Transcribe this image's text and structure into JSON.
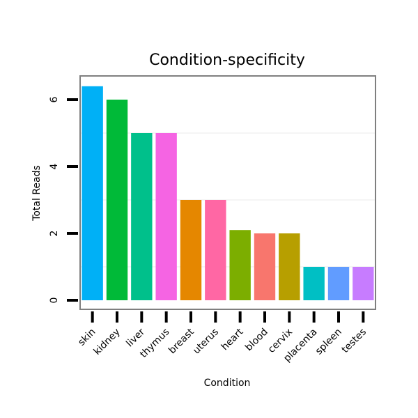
{
  "chart_data": {
    "type": "bar",
    "title": "Condition-specificity",
    "xlabel": "Condition",
    "ylabel": "Total Reads",
    "categories": [
      "skin",
      "kidney",
      "liver",
      "thymus",
      "breast",
      "uterus",
      "heart",
      "blood",
      "cervix",
      "placenta",
      "spleen",
      "testes"
    ],
    "values": [
      6.4,
      6.0,
      5.0,
      5.0,
      3.0,
      3.0,
      2.1,
      2.0,
      2.0,
      1.0,
      1.0,
      1.0
    ],
    "colors": [
      "#00B0F6",
      "#00BA38",
      "#00C08B",
      "#F564E3",
      "#E58700",
      "#FF67A4",
      "#7CAE00",
      "#F8766D",
      "#B79F00",
      "#00BFC4",
      "#619CFF",
      "#C77CFF"
    ],
    "yticks": [
      0,
      2,
      4,
      6
    ],
    "ylim": [
      -0.3,
      6.7
    ],
    "grid": true
  }
}
